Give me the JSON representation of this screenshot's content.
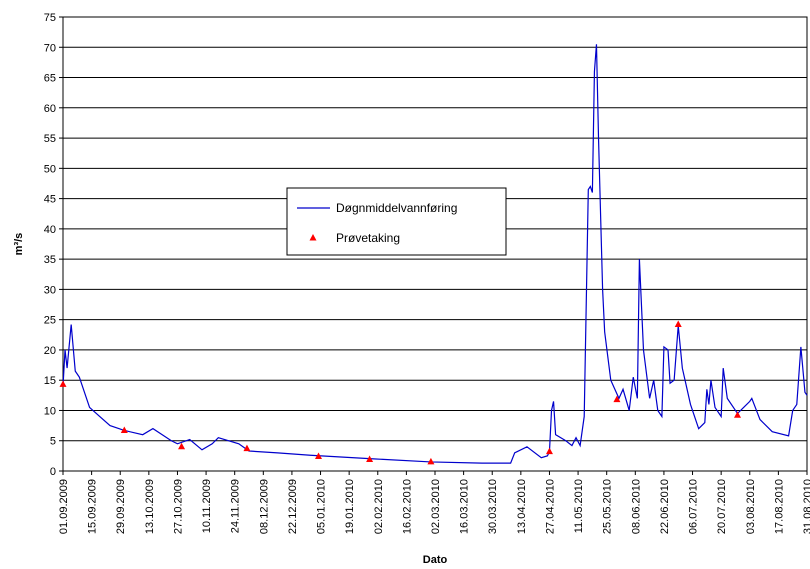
{
  "chart_data": {
    "type": "line",
    "y_label": "m³/s",
    "x_label": "Dato",
    "xlim": [
      "01.09.2009",
      "31.08.2010"
    ],
    "xticks": [
      "01.09.2009",
      "15.09.2009",
      "29.09.2009",
      "13.10.2009",
      "27.10.2009",
      "10.11.2009",
      "24.11.2009",
      "08.12.2009",
      "22.12.2009",
      "05.01.2010",
      "19.01.2010",
      "02.02.2010",
      "16.02.2010",
      "02.03.2010",
      "16.03.2010",
      "30.03.2010",
      "13.04.2010",
      "27.04.2010",
      "11.05.2010",
      "25.05.2010",
      "08.06.2010",
      "22.06.2010",
      "06.07.2010",
      "20.07.2010",
      "03.08.2010",
      "17.08.2010",
      "31.08.2010"
    ],
    "ylim": [
      0,
      75
    ],
    "yticks": [
      0,
      5,
      10,
      15,
      20,
      25,
      30,
      35,
      40,
      45,
      50,
      55,
      60,
      65,
      70,
      75
    ],
    "grid": true,
    "legend": "center",
    "series": [
      {
        "name": "Døgnmiddelvannføring",
        "type": "line",
        "color": "#0000cc",
        "x": [
          "01.09.2009",
          "02.09.2009",
          "03.09.2009",
          "05.09.2009",
          "07.09.2009",
          "09.09.2009",
          "14.09.2009",
          "19.09.2009",
          "24.09.2009",
          "01.10.2009",
          "10.10.2009",
          "15.10.2009",
          "24.10.2009",
          "27.10.2009",
          "02.11.2009",
          "08.11.2009",
          "13.11.2009",
          "16.11.2009",
          "26.11.2009",
          "01.12.2009",
          "15.12.2009",
          "31.12.2009",
          "31.01.2010",
          "28.02.2010",
          "25.03.2010",
          "08.04.2010",
          "10.04.2010",
          "16.04.2010",
          "23.04.2010",
          "26.04.2010",
          "27.04.2010",
          "28.04.2010",
          "29.04.2010",
          "30.04.2010",
          "05.05.2010",
          "08.05.2010",
          "10.05.2010",
          "12.05.2010",
          "14.05.2010",
          "16.05.2010",
          "17.05.2010",
          "18.05.2010",
          "19.05.2010",
          "20.05.2010",
          "21.05.2010",
          "23.05.2010",
          "24.05.2010",
          "27.05.2010",
          "31.05.2010",
          "02.06.2010",
          "05.06.2010",
          "07.06.2010",
          "09.06.2010",
          "10.06.2010",
          "12.06.2010",
          "15.06.2010",
          "17.06.2010",
          "19.06.2010",
          "21.06.2010",
          "22.06.2010",
          "24.06.2010",
          "25.06.2010",
          "27.06.2010",
          "29.06.2010",
          "01.07.2010",
          "05.07.2010",
          "09.07.2010",
          "12.07.2010",
          "13.07.2010",
          "14.07.2010",
          "15.07.2010",
          "17.07.2010",
          "20.07.2010",
          "21.07.2010",
          "23.07.2010",
          "27.07.2010",
          "28.07.2010",
          "31.07.2010",
          "03.08.2010",
          "04.08.2010",
          "08.08.2010",
          "14.08.2010",
          "22.08.2010",
          "24.08.2010",
          "26.08.2010",
          "28.08.2010",
          "30.08.2010",
          "31.08.2010"
        ],
        "values": [
          14,
          20,
          17,
          24.2,
          16.5,
          15.5,
          10.5,
          9,
          7.5,
          6.7,
          6,
          7,
          5,
          4.5,
          5.2,
          3.5,
          4.5,
          5.5,
          4.5,
          3.3,
          3,
          2.6,
          2,
          1.5,
          1.3,
          1.3,
          3,
          4,
          2.2,
          2.5,
          3.2,
          10,
          11.5,
          6,
          5,
          4.2,
          5.5,
          4.2,
          9,
          46.5,
          47,
          46,
          66,
          70.5,
          55,
          30,
          23,
          15,
          12,
          13.5,
          10,
          15.5,
          12,
          35,
          20,
          12,
          15,
          10,
          9,
          20.5,
          20,
          14.5,
          15,
          24,
          17,
          11,
          7,
          8,
          13.5,
          11,
          15,
          10.5,
          9,
          17,
          12,
          10,
          9.5,
          10.5,
          11.5,
          12,
          8.5,
          6.5,
          5.8,
          10,
          11,
          20.5,
          13,
          12.5
        ]
      },
      {
        "name": "Prøvetaking",
        "type": "scatter",
        "color": "#ff0000",
        "x": [
          "01.09.2009",
          "01.10.2009",
          "29.10.2009",
          "30.11.2009",
          "04.01.2010",
          "29.01.2010",
          "28.02.2010",
          "27.04.2010",
          "30.05.2010",
          "29.06.2010",
          "28.07.2010"
        ],
        "values": [
          14.3,
          6.7,
          4,
          3.7,
          2.4,
          1.9,
          1.5,
          3.2,
          11.8,
          24.2,
          9.2
        ]
      }
    ]
  }
}
